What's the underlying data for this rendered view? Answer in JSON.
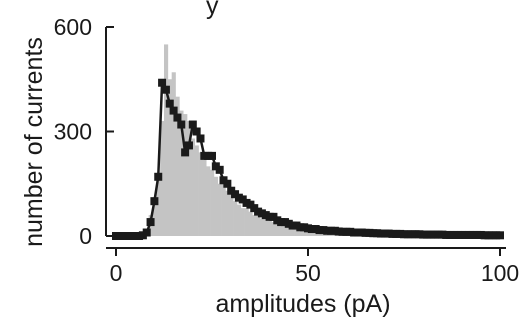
{
  "top_text_fragment": "y",
  "chart_data": {
    "type": "line",
    "xlabel": "amplitudes (pA)",
    "ylabel": "number of currents",
    "xlim": [
      0,
      100
    ],
    "ylim": [
      0,
      600
    ],
    "xticks": [
      0,
      50,
      100
    ],
    "yticks": [
      0,
      300,
      600
    ],
    "xtick_labels": [
      "0",
      "50",
      "100"
    ],
    "ytick_labels": [
      "0",
      "300",
      "600"
    ],
    "grid": false,
    "legend": "none",
    "histogram": {
      "color": "#c4c4c4",
      "bin_width": 1,
      "x": [
        0,
        1,
        2,
        3,
        4,
        5,
        6,
        7,
        8,
        9,
        10,
        11,
        12,
        13,
        14,
        15,
        16,
        17,
        18,
        19,
        20,
        21,
        22,
        23,
        24,
        25,
        26,
        27,
        28,
        29,
        30,
        31,
        32,
        33,
        34,
        35,
        36,
        37,
        38,
        39,
        40,
        41,
        42,
        43,
        44,
        45,
        46,
        47,
        48,
        49,
        50,
        51,
        52,
        53,
        54,
        55,
        56,
        57,
        58,
        59,
        60,
        61,
        62,
        63,
        64,
        65,
        66,
        67,
        68,
        69,
        70,
        71,
        72,
        73,
        74,
        75,
        76,
        77,
        78,
        79,
        80,
        81,
        82,
        83,
        84,
        85,
        86,
        87,
        88,
        89,
        90,
        91,
        92,
        93,
        94,
        95,
        96,
        97,
        98,
        99,
        100
      ],
      "values": [
        0,
        0,
        0,
        0,
        0,
        0,
        0,
        3,
        15,
        60,
        90,
        160,
        330,
        550,
        450,
        470,
        400,
        360,
        350,
        330,
        280,
        260,
        240,
        220,
        200,
        190,
        170,
        150,
        150,
        130,
        120,
        100,
        90,
        80,
        80,
        70,
        60,
        60,
        50,
        50,
        45,
        40,
        40,
        35,
        35,
        30,
        30,
        27,
        25,
        25,
        22,
        20,
        20,
        18,
        17,
        16,
        15,
        15,
        14,
        13,
        12,
        12,
        11,
        10,
        10,
        10,
        9,
        9,
        8,
        8,
        8,
        7,
        7,
        7,
        6,
        6,
        6,
        6,
        5,
        5,
        5,
        5,
        5,
        4,
        4,
        4,
        4,
        4,
        4,
        3,
        3,
        3,
        3,
        3,
        3,
        3,
        3,
        3,
        3,
        2,
        2
      ]
    },
    "series": [
      {
        "color": "#1a1a1a",
        "marker": "square",
        "x": [
          0,
          1,
          2,
          3,
          4,
          5,
          6,
          7,
          8,
          9,
          10,
          11,
          12,
          13,
          14,
          15,
          16,
          17,
          18,
          19,
          20,
          21,
          22,
          23,
          24,
          25,
          26,
          27,
          28,
          29,
          30,
          31,
          32,
          33,
          34,
          35,
          36,
          37,
          38,
          39,
          40,
          41,
          42,
          43,
          44,
          45,
          46,
          47,
          48,
          49,
          50,
          51,
          52,
          53,
          54,
          55,
          56,
          57,
          58,
          59,
          60,
          61,
          62,
          63,
          64,
          65,
          66,
          67,
          68,
          69,
          70,
          71,
          72,
          73,
          74,
          75,
          76,
          77,
          78,
          79,
          80,
          81,
          82,
          83,
          84,
          85,
          86,
          87,
          88,
          89,
          90,
          91,
          92,
          93,
          94,
          95,
          96,
          97,
          98,
          99,
          100
        ],
        "values": [
          0,
          0,
          0,
          0,
          0,
          0,
          0,
          2,
          10,
          40,
          100,
          170,
          440,
          420,
          380,
          360,
          340,
          320,
          240,
          260,
          320,
          300,
          280,
          230,
          230,
          230,
          200,
          190,
          160,
          150,
          130,
          120,
          110,
          105,
          95,
          90,
          80,
          70,
          65,
          60,
          55,
          55,
          45,
          40,
          40,
          35,
          30,
          30,
          25,
          25,
          22,
          20,
          20,
          17,
          17,
          15,
          15,
          15,
          13,
          12,
          12,
          12,
          10,
          10,
          10,
          9,
          9,
          8,
          8,
          7,
          7,
          7,
          6,
          6,
          6,
          5,
          5,
          5,
          5,
          5,
          4,
          4,
          4,
          4,
          4,
          4,
          3,
          3,
          3,
          3,
          3,
          3,
          3,
          3,
          3,
          3,
          2,
          2,
          2,
          2,
          2
        ]
      }
    ]
  }
}
